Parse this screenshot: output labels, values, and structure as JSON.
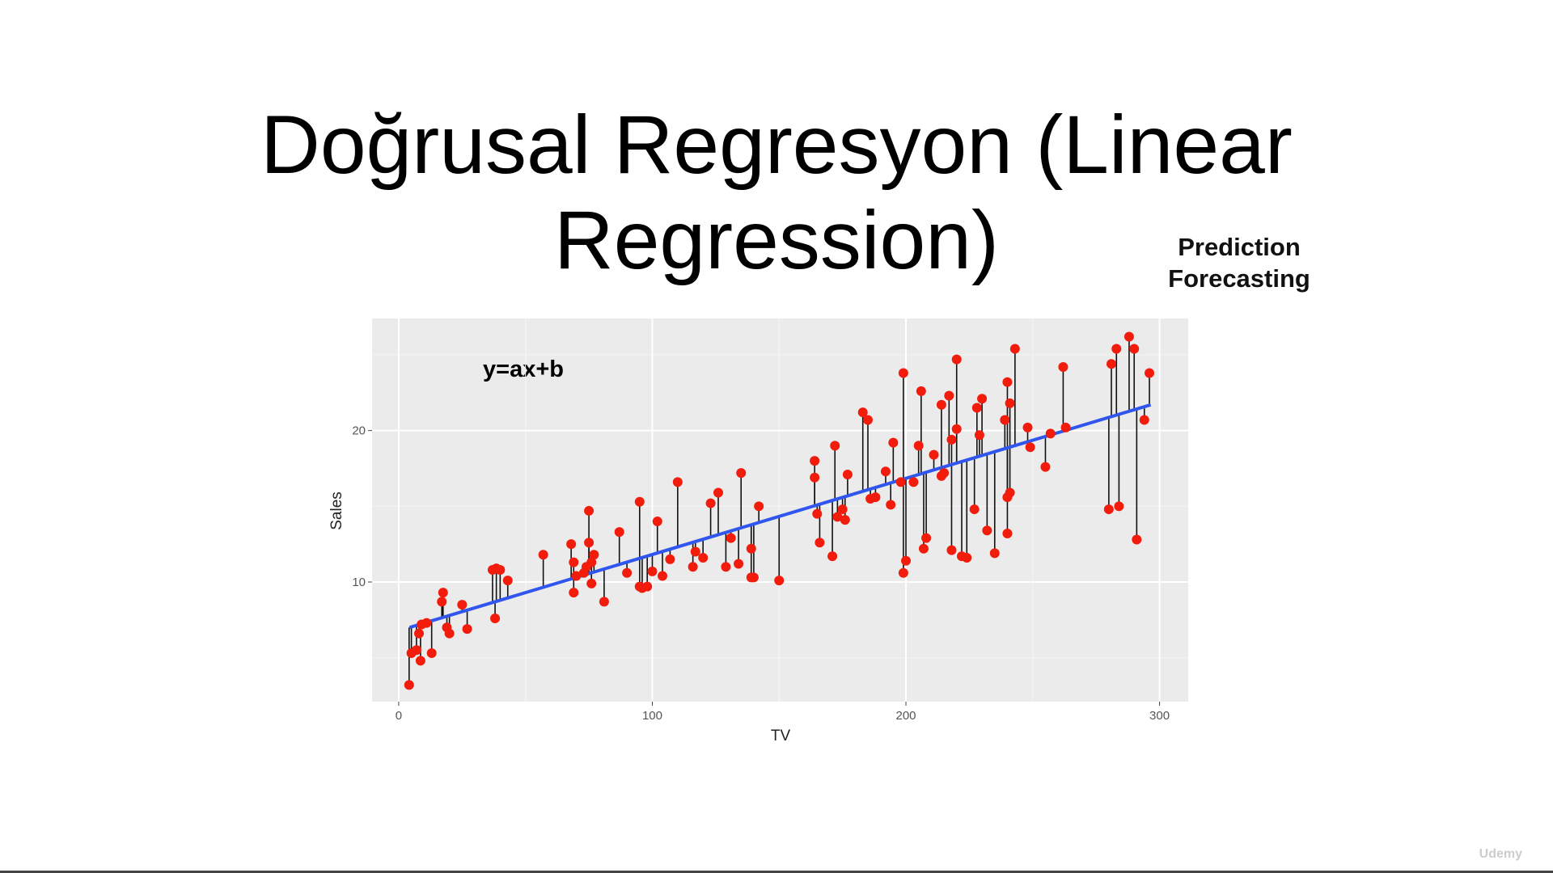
{
  "slide": {
    "title": "Doğrusal Regresyon (Linear Regression)",
    "notes": [
      "Prediction",
      "Forecasting"
    ],
    "watermark": "Udemy"
  },
  "chart_data": {
    "type": "scatter",
    "annotation": "y=ax+b",
    "xlabel": "TV",
    "ylabel": "Sales",
    "xlim": [
      -10.5,
      311.3
    ],
    "ylim": [
      2.1,
      27.4
    ],
    "xticks": [
      0,
      100,
      200,
      300
    ],
    "yticks": [
      10,
      20
    ],
    "xminor": [
      50,
      150,
      250
    ],
    "yminor": [
      5,
      15,
      25
    ],
    "grid": true,
    "series": [
      {
        "name": "Sales",
        "kind": "points",
        "color": "#f21c0c",
        "x": [
          4.1,
          5,
          7,
          8,
          8.6,
          9,
          11,
          13,
          17,
          17.5,
          19,
          20,
          25,
          27,
          37,
          38,
          38.5,
          40,
          43,
          57,
          68,
          69,
          69,
          70,
          73,
          74,
          75,
          75,
          76,
          76,
          77,
          81,
          87,
          90,
          95,
          95,
          96,
          98,
          100,
          102,
          104,
          107,
          110,
          116,
          117,
          120,
          123,
          126,
          129,
          131,
          134,
          135,
          139,
          139,
          140,
          142,
          150,
          164,
          164,
          165,
          166,
          171,
          172,
          173,
          175,
          176,
          177,
          183,
          185,
          186,
          188,
          192,
          194,
          195,
          198,
          199,
          199,
          200,
          203,
          205,
          206,
          207,
          208,
          211,
          214,
          214,
          215,
          217,
          218,
          218,
          220,
          220,
          222,
          224,
          227,
          228,
          229,
          230,
          232,
          235,
          239,
          240,
          240,
          240,
          241,
          241,
          243,
          248,
          249,
          255,
          257,
          262,
          263,
          280,
          281,
          283,
          284,
          288,
          290,
          291,
          294,
          296
        ],
        "values": [
          3.2,
          5.3,
          5.5,
          6.6,
          4.8,
          7.2,
          7.3,
          5.3,
          8.7,
          9.3,
          7.0,
          6.6,
          8.5,
          6.9,
          10.8,
          7.6,
          10.9,
          10.8,
          10.1,
          11.8,
          12.5,
          9.3,
          11.3,
          10.4,
          10.6,
          11.0,
          14.7,
          12.6,
          9.9,
          11.3,
          11.8,
          8.7,
          13.3,
          10.6,
          15.3,
          9.7,
          9.6,
          9.7,
          10.7,
          14.0,
          10.4,
          11.5,
          16.6,
          11.0,
          12.0,
          11.6,
          15.2,
          15.9,
          11.0,
          12.9,
          11.2,
          17.2,
          12.2,
          10.3,
          10.3,
          15.0,
          10.1,
          18.0,
          16.9,
          14.5,
          12.6,
          11.7,
          19.0,
          14.3,
          14.8,
          14.1,
          17.1,
          21.2,
          20.7,
          15.5,
          15.6,
          17.3,
          15.1,
          19.2,
          16.6,
          23.8,
          10.6,
          11.4,
          16.6,
          19.0,
          22.6,
          12.2,
          12.9,
          18.4,
          17.0,
          21.7,
          17.2,
          22.3,
          19.4,
          12.1,
          24.7,
          20.1,
          11.7,
          11.6,
          14.8,
          21.5,
          19.7,
          22.1,
          13.4,
          11.9,
          20.7,
          23.2,
          15.6,
          13.2,
          15.9,
          21.8,
          25.4,
          20.2,
          18.9,
          17.6,
          19.8,
          24.2,
          20.2,
          14.8,
          24.4,
          25.4,
          15.0,
          26.2,
          25.4,
          12.8,
          20.7,
          23.8
        ]
      },
      {
        "name": "Fit",
        "kind": "line",
        "color": "#3156ee",
        "x": [
          4.3,
          296.5
        ],
        "values": [
          7.0,
          21.7
        ]
      }
    ]
  }
}
